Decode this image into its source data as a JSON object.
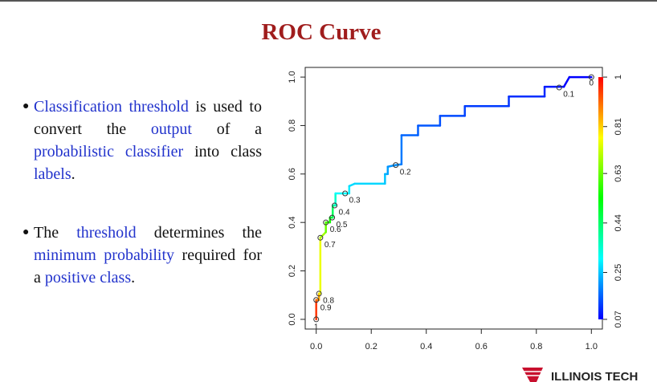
{
  "slide": {
    "title": "ROC Curve",
    "bullets": [
      [
        {
          "text": "Classification threshold",
          "color": "#2233cc"
        },
        {
          "text": " is used to convert the "
        },
        {
          "text": "output",
          "color": "#2233cc"
        },
        {
          "text": " of a "
        },
        {
          "text": "probabilistic classifier",
          "color": "#2233cc"
        },
        {
          "text": " into class "
        },
        {
          "text": "labels",
          "color": "#2233cc"
        },
        {
          "text": "."
        }
      ],
      [
        {
          "text": "The "
        },
        {
          "text": "threshold",
          "color": "#2233cc"
        },
        {
          "text": " determines the "
        },
        {
          "text": "minimum probability",
          "color": "#2233cc"
        },
        {
          "text": " required for a "
        },
        {
          "text": "positive class",
          "color": "#2233cc"
        },
        {
          "text": "."
        }
      ]
    ],
    "logo": "ILLINOIS TECH"
  },
  "chart_data": {
    "type": "line",
    "x": [
      0,
      0,
      0.01,
      0.01,
      0.015,
      0.015,
      0.035,
      0.035,
      0.05,
      0.05,
      0.06,
      0.06,
      0.07,
      0.07,
      0.12,
      0.12,
      0.14,
      0.25,
      0.25,
      0.26,
      0.26,
      0.29,
      0.31,
      0.31,
      0.37,
      0.37,
      0.45,
      0.45,
      0.54,
      0.54,
      0.7,
      0.7,
      0.83,
      0.83,
      0.88,
      0.9,
      0.92,
      1
    ],
    "y": [
      0,
      0.08,
      0.08,
      0.106,
      0.106,
      0.337,
      0.36,
      0.4,
      0.4,
      0.42,
      0.42,
      0.47,
      0.47,
      0.52,
      0.52,
      0.55,
      0.56,
      0.56,
      0.6,
      0.6,
      0.63,
      0.637,
      0.64,
      0.76,
      0.76,
      0.8,
      0.8,
      0.84,
      0.84,
      0.88,
      0.88,
      0.92,
      0.92,
      0.96,
      0.96,
      0.96,
      1,
      1
    ],
    "cutoff_points": {
      "x": [
        0,
        0,
        0.01,
        0.015,
        0.035,
        0.058,
        0.067,
        0.105,
        0.289,
        0.883,
        1
      ],
      "y": [
        0,
        0.08,
        0.106,
        0.337,
        0.4,
        0.42,
        0.47,
        0.52,
        0.637,
        0.957,
        1
      ],
      "cutoffs": [
        1,
        0.9,
        0.8,
        0.7,
        0.6,
        0.5,
        0.4,
        0.3,
        0.2,
        0.1,
        0
      ]
    },
    "xlim": [
      -0.04,
      1.04
    ],
    "ylim": [
      -0.04,
      1.04
    ],
    "xticks": [
      {
        "value": 0,
        "label": "0.0"
      },
      {
        "value": 0.2,
        "label": "0.2"
      },
      {
        "value": 0.4,
        "label": "0.4"
      },
      {
        "value": 0.6,
        "label": "0.6"
      },
      {
        "value": 0.8,
        "label": "0.8"
      },
      {
        "value": 1,
        "label": "1.0"
      }
    ],
    "yticks": [
      {
        "value": 0,
        "label": "0.0"
      },
      {
        "value": 0.2,
        "label": "0.2"
      },
      {
        "value": 0.4,
        "label": "0.4"
      },
      {
        "value": 0.6,
        "label": "0.6"
      },
      {
        "value": 0.8,
        "label": "0.8"
      },
      {
        "value": 1,
        "label": "1.0"
      }
    ],
    "colorbar_lim": [
      0.07,
      1
    ],
    "colorbar_ticks": [
      0.07,
      0.25,
      0.44,
      0.63,
      0.81,
      1
    ],
    "colormap": [
      "#0000ff",
      "#00ffff",
      "#00ff00",
      "#ffff00",
      "#ff0000"
    ]
  }
}
